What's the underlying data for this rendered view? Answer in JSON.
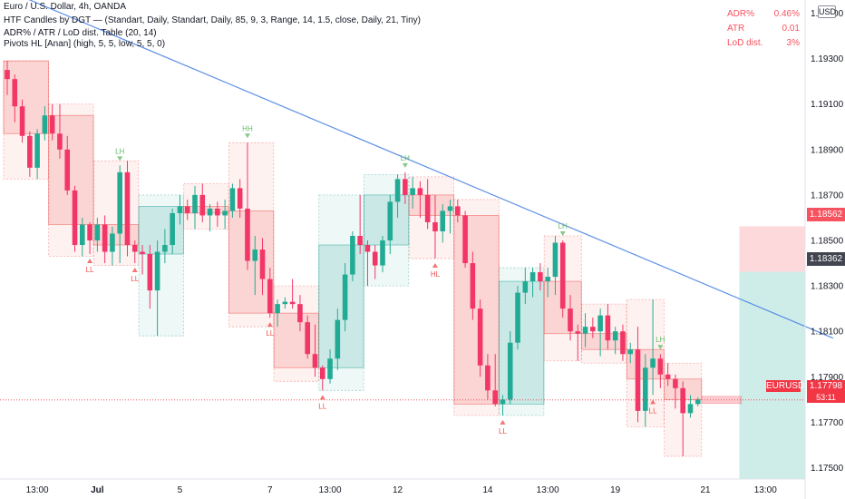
{
  "header": {
    "title": "Euro / U.S. Dollar, 4h, OANDA",
    "indicator1": "HTF Candles by DGT — (Standart, Daily, Standart, Daily, 85, 9, 3, Range, 14, 1.5, close, Daily, 21, Tiny)",
    "indicator2": "ADR% / ATR / LoD dist. Table (20, 14)",
    "indicator3": "Pivots HL [Anan] (high, 5, 5, low, 5, 5, 0)"
  },
  "stats_table": [
    {
      "label": "ADR%",
      "value": "0.46%"
    },
    {
      "label": "ATR",
      "value": "0.01"
    },
    {
      "label": "LoD dist.",
      "value": "3%"
    }
  ],
  "currency_badge": "USD",
  "price_tags": {
    "top": "1.18562",
    "mid": "1.18362",
    "symbol": "EURUSD",
    "last": "1.17798",
    "countdown": "53:11"
  },
  "colors": {
    "up": "#26a69a",
    "down": "#ef5350",
    "candle_down": "#f23668",
    "candle_up": "#22ab94",
    "trendline": "#5b8ee6",
    "pivot_high": "#66bb6a",
    "pivot_low": "#ef5350"
  },
  "chart_data": {
    "type": "candlestick",
    "symbol": "EURUSD",
    "timeframe": "4h",
    "ylim": [
      1.1745,
      1.1955
    ],
    "y_ticks": [
      "1.19500",
      "1.19300",
      "1.19100",
      "1.18900",
      "1.18700",
      "1.18500",
      "1.18300",
      "1.18100",
      "1.17900",
      "1.17700",
      "1.17500"
    ],
    "y_tick_values": [
      1.195,
      1.193,
      1.191,
      1.189,
      1.187,
      1.185,
      1.183,
      1.181,
      1.179,
      1.177,
      1.175
    ],
    "x_labels": [
      {
        "label": "13:00",
        "bar": 4
      },
      {
        "label": "Jul",
        "bar": 12
      },
      {
        "label": "5",
        "bar": 23
      },
      {
        "label": "7",
        "bar": 35
      },
      {
        "label": "13:00",
        "bar": 43
      },
      {
        "label": "12",
        "bar": 52
      },
      {
        "label": "14",
        "bar": 64
      },
      {
        "label": "13:00",
        "bar": 72
      },
      {
        "label": "19",
        "bar": 81
      },
      {
        "label": "21",
        "bar": 93
      },
      {
        "label": "13:00",
        "bar": 101
      }
    ],
    "candles": [
      {
        "o": 1.1925,
        "h": 1.1929,
        "l": 1.1914,
        "c": 1.1921
      },
      {
        "o": 1.1921,
        "h": 1.1923,
        "l": 1.1902,
        "c": 1.1909
      },
      {
        "o": 1.1909,
        "h": 1.1912,
        "l": 1.1893,
        "c": 1.1896
      },
      {
        "o": 1.1896,
        "h": 1.1898,
        "l": 1.1878,
        "c": 1.1882
      },
      {
        "o": 1.1882,
        "h": 1.1899,
        "l": 1.1877,
        "c": 1.1897
      },
      {
        "o": 1.1897,
        "h": 1.1909,
        "l": 1.1894,
        "c": 1.1905
      },
      {
        "o": 1.1905,
        "h": 1.191,
        "l": 1.1894,
        "c": 1.1897
      },
      {
        "o": 1.1897,
        "h": 1.191,
        "l": 1.1886,
        "c": 1.189
      },
      {
        "o": 1.189,
        "h": 1.1896,
        "l": 1.187,
        "c": 1.1872
      },
      {
        "o": 1.1872,
        "h": 1.1874,
        "l": 1.1845,
        "c": 1.1848
      },
      {
        "o": 1.1848,
        "h": 1.186,
        "l": 1.1843,
        "c": 1.1857
      },
      {
        "o": 1.1857,
        "h": 1.1858,
        "l": 1.1844,
        "c": 1.185
      },
      {
        "o": 1.185,
        "h": 1.186,
        "l": 1.1845,
        "c": 1.1857
      },
      {
        "o": 1.1857,
        "h": 1.1861,
        "l": 1.184,
        "c": 1.1845
      },
      {
        "o": 1.1845,
        "h": 1.1856,
        "l": 1.1839,
        "c": 1.1853
      },
      {
        "o": 1.1853,
        "h": 1.1883,
        "l": 1.184,
        "c": 1.188
      },
      {
        "o": 1.188,
        "h": 1.1885,
        "l": 1.1843,
        "c": 1.1848
      },
      {
        "o": 1.1848,
        "h": 1.185,
        "l": 1.184,
        "c": 1.1845
      },
      {
        "o": 1.1845,
        "h": 1.1848,
        "l": 1.1835,
        "c": 1.1844
      },
      {
        "o": 1.1844,
        "h": 1.1848,
        "l": 1.182,
        "c": 1.1828
      },
      {
        "o": 1.1828,
        "h": 1.185,
        "l": 1.1808,
        "c": 1.1845
      },
      {
        "o": 1.1845,
        "h": 1.1855,
        "l": 1.184,
        "c": 1.1848
      },
      {
        "o": 1.1848,
        "h": 1.1864,
        "l": 1.1844,
        "c": 1.1862
      },
      {
        "o": 1.1862,
        "h": 1.187,
        "l": 1.1857,
        "c": 1.1865
      },
      {
        "o": 1.1865,
        "h": 1.1868,
        "l": 1.1859,
        "c": 1.1862
      },
      {
        "o": 1.1862,
        "h": 1.1874,
        "l": 1.1855,
        "c": 1.187
      },
      {
        "o": 1.187,
        "h": 1.1875,
        "l": 1.1858,
        "c": 1.1861
      },
      {
        "o": 1.1861,
        "h": 1.1866,
        "l": 1.1854,
        "c": 1.1864
      },
      {
        "o": 1.1864,
        "h": 1.1867,
        "l": 1.1856,
        "c": 1.1861
      },
      {
        "o": 1.1861,
        "h": 1.1868,
        "l": 1.1855,
        "c": 1.1863
      },
      {
        "o": 1.1863,
        "h": 1.1875,
        "l": 1.186,
        "c": 1.1873
      },
      {
        "o": 1.1873,
        "h": 1.1877,
        "l": 1.186,
        "c": 1.1864
      },
      {
        "o": 1.1864,
        "h": 1.1893,
        "l": 1.1837,
        "c": 1.1841
      },
      {
        "o": 1.1841,
        "h": 1.1852,
        "l": 1.1826,
        "c": 1.1846
      },
      {
        "o": 1.1846,
        "h": 1.1851,
        "l": 1.1826,
        "c": 1.1833
      },
      {
        "o": 1.1833,
        "h": 1.1838,
        "l": 1.1816,
        "c": 1.1818
      },
      {
        "o": 1.1818,
        "h": 1.1824,
        "l": 1.1812,
        "c": 1.1822
      },
      {
        "o": 1.1822,
        "h": 1.1825,
        "l": 1.182,
        "c": 1.1823
      },
      {
        "o": 1.1823,
        "h": 1.1833,
        "l": 1.182,
        "c": 1.1822
      },
      {
        "o": 1.1822,
        "h": 1.1826,
        "l": 1.181,
        "c": 1.1814
      },
      {
        "o": 1.1814,
        "h": 1.1817,
        "l": 1.1798,
        "c": 1.18
      },
      {
        "o": 1.18,
        "h": 1.1813,
        "l": 1.179,
        "c": 1.1794
      },
      {
        "o": 1.1794,
        "h": 1.1795,
        "l": 1.1784,
        "c": 1.1789
      },
      {
        "o": 1.1789,
        "h": 1.1802,
        "l": 1.1787,
        "c": 1.1798
      },
      {
        "o": 1.1798,
        "h": 1.182,
        "l": 1.1793,
        "c": 1.1815
      },
      {
        "o": 1.1815,
        "h": 1.184,
        "l": 1.181,
        "c": 1.1835
      },
      {
        "o": 1.1835,
        "h": 1.1854,
        "l": 1.1832,
        "c": 1.1852
      },
      {
        "o": 1.1852,
        "h": 1.187,
        "l": 1.1844,
        "c": 1.1848
      },
      {
        "o": 1.1848,
        "h": 1.185,
        "l": 1.183,
        "c": 1.1845
      },
      {
        "o": 1.1845,
        "h": 1.1848,
        "l": 1.1833,
        "c": 1.1839
      },
      {
        "o": 1.1839,
        "h": 1.1852,
        "l": 1.1836,
        "c": 1.185
      },
      {
        "o": 1.185,
        "h": 1.187,
        "l": 1.1844,
        "c": 1.1867
      },
      {
        "o": 1.1867,
        "h": 1.1879,
        "l": 1.186,
        "c": 1.1877
      },
      {
        "o": 1.1877,
        "h": 1.188,
        "l": 1.1866,
        "c": 1.187
      },
      {
        "o": 1.187,
        "h": 1.1878,
        "l": 1.1864,
        "c": 1.1873
      },
      {
        "o": 1.1873,
        "h": 1.1876,
        "l": 1.186,
        "c": 1.187
      },
      {
        "o": 1.187,
        "h": 1.1877,
        "l": 1.1855,
        "c": 1.1858
      },
      {
        "o": 1.1858,
        "h": 1.187,
        "l": 1.1842,
        "c": 1.1854
      },
      {
        "o": 1.1854,
        "h": 1.1866,
        "l": 1.1849,
        "c": 1.1863
      },
      {
        "o": 1.1863,
        "h": 1.1868,
        "l": 1.1853,
        "c": 1.1865
      },
      {
        "o": 1.1865,
        "h": 1.1868,
        "l": 1.1858,
        "c": 1.1861
      },
      {
        "o": 1.1861,
        "h": 1.1863,
        "l": 1.1838,
        "c": 1.184
      },
      {
        "o": 1.184,
        "h": 1.1845,
        "l": 1.1815,
        "c": 1.182
      },
      {
        "o": 1.182,
        "h": 1.1824,
        "l": 1.179,
        "c": 1.1795
      },
      {
        "o": 1.1795,
        "h": 1.18,
        "l": 1.178,
        "c": 1.1784
      },
      {
        "o": 1.1784,
        "h": 1.18,
        "l": 1.1777,
        "c": 1.1778
      },
      {
        "o": 1.1778,
        "h": 1.1782,
        "l": 1.1773,
        "c": 1.178
      },
      {
        "o": 1.178,
        "h": 1.181,
        "l": 1.1778,
        "c": 1.1805
      },
      {
        "o": 1.1805,
        "h": 1.183,
        "l": 1.1802,
        "c": 1.1827
      },
      {
        "o": 1.1827,
        "h": 1.1838,
        "l": 1.1822,
        "c": 1.1832
      },
      {
        "o": 1.1832,
        "h": 1.1838,
        "l": 1.1825,
        "c": 1.1836
      },
      {
        "o": 1.1836,
        "h": 1.184,
        "l": 1.1828,
        "c": 1.1832
      },
      {
        "o": 1.1832,
        "h": 1.1838,
        "l": 1.1825,
        "c": 1.1834
      },
      {
        "o": 1.1834,
        "h": 1.1852,
        "l": 1.1826,
        "c": 1.1849
      },
      {
        "o": 1.1849,
        "h": 1.185,
        "l": 1.1816,
        "c": 1.182
      },
      {
        "o": 1.182,
        "h": 1.1826,
        "l": 1.1806,
        "c": 1.181
      },
      {
        "o": 1.181,
        "h": 1.1813,
        "l": 1.1797,
        "c": 1.1809
      },
      {
        "o": 1.1809,
        "h": 1.1818,
        "l": 1.1803,
        "c": 1.1812
      },
      {
        "o": 1.1812,
        "h": 1.1816,
        "l": 1.1807,
        "c": 1.181
      },
      {
        "o": 1.181,
        "h": 1.182,
        "l": 1.1799,
        "c": 1.1817
      },
      {
        "o": 1.1817,
        "h": 1.1822,
        "l": 1.1802,
        "c": 1.1806
      },
      {
        "o": 1.1806,
        "h": 1.1812,
        "l": 1.18,
        "c": 1.181
      },
      {
        "o": 1.181,
        "h": 1.1813,
        "l": 1.1797,
        "c": 1.18
      },
      {
        "o": 1.18,
        "h": 1.1805,
        "l": 1.1796,
        "c": 1.1802
      },
      {
        "o": 1.1802,
        "h": 1.1812,
        "l": 1.177,
        "c": 1.1775
      },
      {
        "o": 1.1775,
        "h": 1.18,
        "l": 1.1768,
        "c": 1.1794
      },
      {
        "o": 1.1794,
        "h": 1.1824,
        "l": 1.1782,
        "c": 1.1798
      },
      {
        "o": 1.1798,
        "h": 1.18,
        "l": 1.1785,
        "c": 1.1791
      },
      {
        "o": 1.1791,
        "h": 1.1796,
        "l": 1.1786,
        "c": 1.1789
      },
      {
        "o": 1.1789,
        "h": 1.1791,
        "l": 1.1776,
        "c": 1.1785
      },
      {
        "o": 1.1785,
        "h": 1.1788,
        "l": 1.1755,
        "c": 1.1774
      },
      {
        "o": 1.1774,
        "h": 1.1782,
        "l": 1.1772,
        "c": 1.1778
      },
      {
        "o": 1.1778,
        "h": 1.1781,
        "l": 1.1777,
        "c": 1.178
      }
    ],
    "htf_boxes": [
      {
        "start": 0,
        "end": 5,
        "o": 1.1929,
        "c": 1.1897,
        "h": 1.1929,
        "l": 1.1877
      },
      {
        "start": 6,
        "end": 11,
        "o": 1.1905,
        "c": 1.1857,
        "h": 1.191,
        "l": 1.1843
      },
      {
        "start": 12,
        "end": 17,
        "o": 1.1857,
        "c": 1.1848,
        "h": 1.1885,
        "l": 1.1839
      },
      {
        "start": 18,
        "end": 23,
        "o": 1.1844,
        "c": 1.1865,
        "h": 1.187,
        "l": 1.1808
      },
      {
        "start": 24,
        "end": 29,
        "o": 1.1865,
        "c": 1.1862,
        "h": 1.1875,
        "l": 1.1855
      },
      {
        "start": 30,
        "end": 35,
        "o": 1.1863,
        "c": 1.1818,
        "h": 1.1893,
        "l": 1.1812
      },
      {
        "start": 36,
        "end": 41,
        "o": 1.1818,
        "c": 1.1794,
        "h": 1.183,
        "l": 1.1788
      },
      {
        "start": 42,
        "end": 47,
        "o": 1.1794,
        "c": 1.1848,
        "h": 1.187,
        "l": 1.1784
      },
      {
        "start": 48,
        "end": 53,
        "o": 1.1848,
        "c": 1.187,
        "h": 1.1879,
        "l": 1.183
      },
      {
        "start": 54,
        "end": 59,
        "o": 1.187,
        "c": 1.1861,
        "h": 1.1878,
        "l": 1.1842
      },
      {
        "start": 60,
        "end": 65,
        "o": 1.1861,
        "c": 1.1778,
        "h": 1.1868,
        "l": 1.1773
      },
      {
        "start": 66,
        "end": 71,
        "o": 1.1778,
        "c": 1.1832,
        "h": 1.1838,
        "l": 1.1773
      },
      {
        "start": 72,
        "end": 76,
        "o": 1.1832,
        "c": 1.1809,
        "h": 1.1852,
        "l": 1.1797
      },
      {
        "start": 77,
        "end": 82,
        "o": 1.1809,
        "c": 1.1802,
        "h": 1.1822,
        "l": 1.1796
      },
      {
        "start": 83,
        "end": 87,
        "o": 1.1802,
        "c": 1.1789,
        "h": 1.1824,
        "l": 1.1768
      },
      {
        "start": 88,
        "end": 92,
        "o": 1.1789,
        "c": 1.178,
        "h": 1.1796,
        "l": 1.1755
      }
    ],
    "pivots": [
      {
        "bar": 15,
        "type": "high",
        "label": "LH"
      },
      {
        "bar": 11,
        "type": "low",
        "label": "LL"
      },
      {
        "bar": 17,
        "type": "low",
        "label": "LL"
      },
      {
        "bar": 32,
        "type": "high",
        "label": "HH"
      },
      {
        "bar": 35,
        "type": "low",
        "label": "LL"
      },
      {
        "bar": 42,
        "type": "low",
        "label": "LL"
      },
      {
        "bar": 53,
        "type": "high",
        "label": "LH"
      },
      {
        "bar": 57,
        "type": "low",
        "label": "HL"
      },
      {
        "bar": 66,
        "type": "low",
        "label": "LL"
      },
      {
        "bar": 74,
        "type": "high",
        "label": "LH"
      },
      {
        "bar": 87,
        "type": "high",
        "label": "LH"
      },
      {
        "bar": 86,
        "type": "low",
        "label": "LL"
      }
    ],
    "trendline": [
      {
        "bar": 0,
        "price": 1.196
      },
      {
        "bar": 110,
        "price": 1.1807
      }
    ],
    "position": {
      "start_bar": 98,
      "end_bar": 110,
      "stop": 1.18562,
      "entry": 1.18362,
      "target": 1.1738
    },
    "last_price": 1.17798,
    "last_bar_index": 92
  }
}
